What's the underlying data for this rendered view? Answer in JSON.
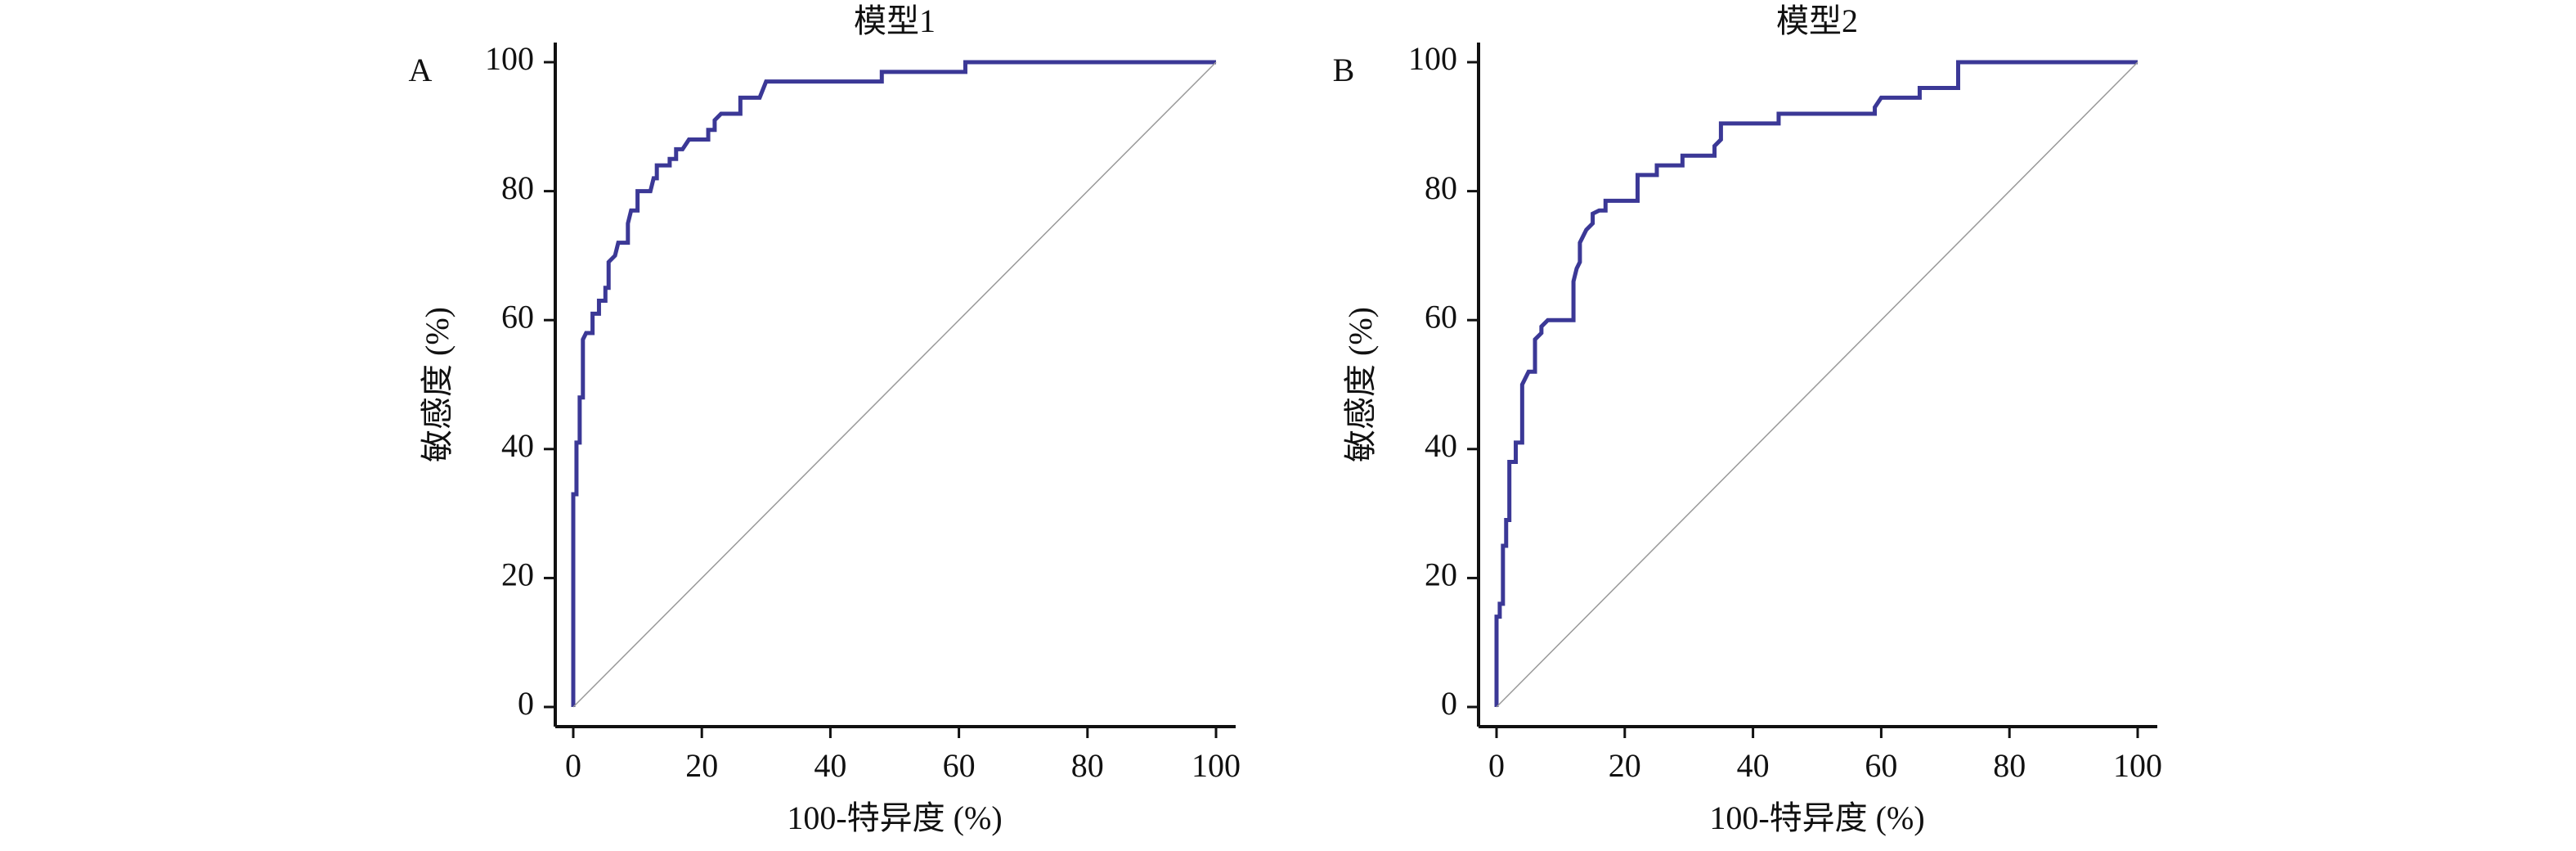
{
  "chart_data": [
    {
      "type": "line",
      "panel": "A",
      "title": "模型1",
      "xlabel": "100-特异度 (%)",
      "ylabel": "敏感度 (%)",
      "xlim": [
        0,
        100
      ],
      "ylim": [
        0,
        100
      ],
      "xticks": [
        0,
        20,
        40,
        60,
        80,
        100
      ],
      "yticks": [
        0,
        20,
        40,
        60,
        80,
        100
      ],
      "series": [
        {
          "color": "#3b3896",
          "x": [
            0,
            0,
            0.5,
            0.5,
            1,
            1,
            1.5,
            1.5,
            2,
            3,
            3,
            4,
            4,
            5,
            5,
            5.5,
            5.5,
            6.5,
            7,
            8.5,
            8.5,
            9,
            10,
            10,
            12,
            12.5,
            13,
            13,
            15,
            15,
            16,
            16,
            17,
            18,
            21,
            21,
            22,
            22,
            23,
            26,
            26,
            29,
            30,
            48,
            48,
            61,
            61,
            100
          ],
          "values": [
            0,
            33,
            33,
            41,
            41,
            48,
            48,
            57,
            58,
            58,
            61,
            61,
            63,
            63,
            65,
            65,
            69,
            70,
            72,
            72,
            75,
            77,
            77,
            80,
            80,
            82,
            82,
            84,
            84,
            85,
            85,
            86.5,
            86.5,
            88,
            88,
            89.5,
            89.5,
            91,
            92,
            92,
            94.5,
            94.5,
            97,
            97,
            98.5,
            98.5,
            100,
            100
          ]
        },
        {
          "color": "#999999",
          "x": [
            0,
            100
          ],
          "values": [
            0,
            100
          ]
        }
      ]
    },
    {
      "type": "line",
      "panel": "B",
      "title": "模型2",
      "xlabel": "100-特异度 (%)",
      "ylabel": "敏感度 (%)",
      "xlim": [
        0,
        100
      ],
      "ylim": [
        0,
        100
      ],
      "xticks": [
        0,
        20,
        40,
        60,
        80,
        100
      ],
      "yticks": [
        0,
        20,
        40,
        60,
        80,
        100
      ],
      "series": [
        {
          "color": "#3b3896",
          "x": [
            0,
            0,
            0.5,
            0.5,
            1,
            1,
            1.5,
            1.5,
            2,
            2,
            3,
            3,
            4,
            4,
            5,
            6,
            6,
            7,
            7,
            8,
            12,
            12,
            12.5,
            13,
            13,
            14,
            15,
            15,
            16,
            17,
            17,
            22,
            22,
            25,
            25,
            29,
            29,
            34,
            34,
            35,
            35,
            44,
            44,
            59,
            59,
            60,
            66,
            66,
            72,
            72,
            100
          ],
          "values": [
            0,
            14,
            14,
            16,
            16,
            25,
            25,
            29,
            29,
            38,
            38,
            41,
            41,
            50,
            52,
            52,
            57,
            58,
            59,
            60,
            60,
            66,
            68,
            69,
            72,
            74,
            75,
            76.5,
            77,
            77,
            78.5,
            78.5,
            82.5,
            82.5,
            84,
            84,
            85.5,
            85.5,
            87,
            88,
            90.5,
            90.5,
            92,
            92,
            93,
            94.5,
            94.5,
            96,
            96,
            100,
            100
          ]
        },
        {
          "color": "#999999",
          "x": [
            0,
            100
          ],
          "values": [
            0,
            100
          ]
        }
      ]
    }
  ]
}
